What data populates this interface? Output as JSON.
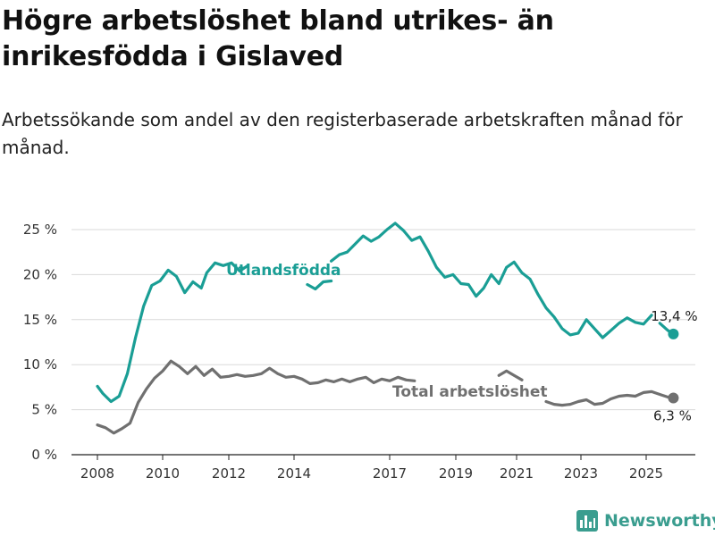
{
  "title": "Högre arbetslöshet bland utrikes- än inrikesfödda i Gislaved",
  "subtitle": "Arbetssökande som andel av den registerbaserade arbetskraften månad för månad.",
  "brand": {
    "name": "Newsworthy",
    "icon": "bar-chart-logo-icon",
    "color": "#3a9d8f"
  },
  "chart_data": {
    "type": "line",
    "y_ticks": [
      "25 %",
      "20 %",
      "15 %",
      "10 %",
      "5 %",
      "0 %"
    ],
    "x_ticks": [
      "2008",
      "2010",
      "2012",
      "2014",
      "2017",
      "2019",
      "2021",
      "2023",
      "2025"
    ],
    "ylim": [
      0,
      25
    ],
    "grid": true,
    "series": [
      {
        "name": "Utlandsfödda",
        "color": "#1a9e95",
        "end_label": "13,4 %",
        "points": [
          [
            "2008-01",
            7.6
          ],
          [
            "2008-03",
            6.8
          ],
          [
            "2008-06",
            5.9
          ],
          [
            "2008-09",
            6.5
          ],
          [
            "2008-12",
            9.0
          ],
          [
            "2009-03",
            13.0
          ],
          [
            "2009-06",
            16.5
          ],
          [
            "2009-09",
            18.8
          ],
          [
            "2009-12",
            19.3
          ],
          [
            "2010-03",
            20.5
          ],
          [
            "2010-06",
            19.8
          ],
          [
            "2010-09",
            18.0
          ],
          [
            "2010-12",
            19.2
          ],
          [
            "2011-03",
            18.5
          ],
          [
            "2011-05",
            20.2
          ],
          [
            "2011-08",
            21.3
          ],
          [
            "2011-11",
            21.0
          ],
          [
            "2012-02",
            21.3
          ],
          [
            "2012-05",
            20.4
          ],
          [
            "2012-08",
            21.0
          ],
          null,
          [
            "2014-06",
            18.9
          ],
          [
            "2014-09",
            18.4
          ],
          [
            "2014-12",
            19.2
          ],
          [
            "2015-03",
            19.3
          ],
          null,
          [
            "2015-03",
            21.5
          ],
          [
            "2015-06",
            22.2
          ],
          [
            "2015-09",
            22.5
          ],
          [
            "2015-12",
            23.4
          ],
          [
            "2016-03",
            24.3
          ],
          [
            "2016-06",
            23.7
          ],
          [
            "2016-09",
            24.2
          ],
          [
            "2016-12",
            25.0
          ],
          [
            "2017-03",
            25.7
          ],
          [
            "2017-06",
            24.9
          ],
          [
            "2017-09",
            23.8
          ],
          [
            "2017-12",
            24.2
          ],
          [
            "2018-03",
            22.6
          ],
          [
            "2018-06",
            20.8
          ],
          [
            "2018-09",
            19.7
          ],
          [
            "2018-12",
            20.0
          ],
          [
            "2019-03",
            19.0
          ],
          [
            "2019-06",
            18.9
          ],
          [
            "2019-09",
            17.6
          ],
          [
            "2019-12",
            18.5
          ],
          [
            "2020-03",
            20.0
          ],
          [
            "2020-06",
            19.0
          ],
          [
            "2020-09",
            20.8
          ],
          [
            "2020-12",
            21.4
          ],
          [
            "2021-03",
            20.2
          ],
          [
            "2021-06",
            19.5
          ],
          [
            "2021-09",
            17.8
          ],
          [
            "2021-12",
            16.3
          ],
          [
            "2022-03",
            15.3
          ],
          [
            "2022-06",
            14.0
          ],
          [
            "2022-09",
            13.3
          ],
          [
            "2022-12",
            13.5
          ],
          [
            "2023-03",
            15.0
          ],
          [
            "2023-06",
            14.0
          ],
          [
            "2023-09",
            13.0
          ],
          [
            "2023-12",
            13.8
          ],
          [
            "2024-03",
            14.6
          ],
          [
            "2024-06",
            15.2
          ],
          [
            "2024-09",
            14.7
          ],
          [
            "2024-12",
            14.5
          ],
          [
            "2025-03",
            15.5
          ],
          null,
          [
            "2025-06",
            14.6
          ],
          [
            "2025-09",
            13.8
          ],
          [
            "2025-11",
            13.4
          ]
        ]
      },
      {
        "name": "Total arbetslöshet",
        "color": "#707070",
        "end_label": "6,3 %",
        "points": [
          [
            "2008-01",
            3.3
          ],
          [
            "2008-04",
            3.0
          ],
          [
            "2008-07",
            2.4
          ],
          [
            "2008-10",
            2.9
          ],
          [
            "2009-01",
            3.5
          ],
          [
            "2009-04",
            5.8
          ],
          [
            "2009-07",
            7.3
          ],
          [
            "2009-10",
            8.5
          ],
          [
            "2010-01",
            9.3
          ],
          [
            "2010-04",
            10.4
          ],
          [
            "2010-07",
            9.8
          ],
          [
            "2010-10",
            9.0
          ],
          [
            "2011-01",
            9.8
          ],
          [
            "2011-04",
            8.8
          ],
          [
            "2011-07",
            9.5
          ],
          [
            "2011-10",
            8.6
          ],
          [
            "2012-01",
            8.7
          ],
          [
            "2012-04",
            8.9
          ],
          [
            "2012-07",
            8.7
          ],
          [
            "2012-10",
            8.8
          ],
          [
            "2013-01",
            9.0
          ],
          [
            "2013-04",
            9.6
          ],
          [
            "2013-07",
            9.0
          ],
          [
            "2013-10",
            8.6
          ],
          [
            "2014-01",
            8.7
          ],
          [
            "2014-04",
            8.4
          ],
          [
            "2014-07",
            7.9
          ],
          [
            "2014-10",
            8.0
          ],
          [
            "2015-01",
            8.3
          ],
          [
            "2015-04",
            8.1
          ],
          [
            "2015-07",
            8.4
          ],
          [
            "2015-10",
            8.1
          ],
          [
            "2016-01",
            8.4
          ],
          [
            "2016-04",
            8.6
          ],
          [
            "2016-07",
            8.0
          ],
          [
            "2016-10",
            8.4
          ],
          [
            "2017-01",
            8.2
          ],
          [
            "2017-04",
            8.6
          ],
          [
            "2017-07",
            8.3
          ],
          [
            "2017-10",
            8.2
          ],
          null,
          [
            "2020-06",
            8.8
          ],
          [
            "2020-09",
            9.3
          ],
          [
            "2020-12",
            8.8
          ],
          [
            "2021-03",
            8.3
          ],
          null,
          [
            "2021-12",
            5.9
          ],
          [
            "2022-03",
            5.6
          ],
          [
            "2022-06",
            5.5
          ],
          [
            "2022-09",
            5.6
          ],
          [
            "2022-12",
            5.9
          ],
          [
            "2023-03",
            6.1
          ],
          [
            "2023-06",
            5.6
          ],
          [
            "2023-09",
            5.7
          ],
          [
            "2023-12",
            6.2
          ],
          [
            "2024-03",
            6.5
          ],
          [
            "2024-06",
            6.6
          ],
          [
            "2024-09",
            6.5
          ],
          [
            "2024-12",
            6.9
          ],
          [
            "2025-03",
            7.0
          ],
          [
            "2025-06",
            6.7
          ],
          [
            "2025-09",
            6.4
          ],
          [
            "2025-11",
            6.3
          ]
        ]
      }
    ]
  }
}
